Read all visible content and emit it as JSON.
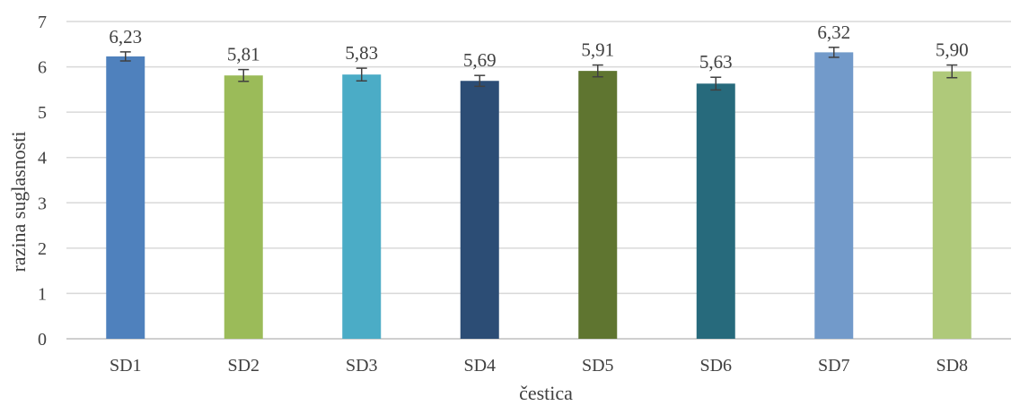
{
  "chart_data": {
    "type": "bar",
    "title": "",
    "xlabel": "čestica",
    "ylabel": "razina suglasnosti",
    "categories": [
      "SD1",
      "SD2",
      "SD3",
      "SD4",
      "SD5",
      "SD6",
      "SD7",
      "SD8"
    ],
    "values": [
      6.23,
      5.81,
      5.83,
      5.69,
      5.91,
      5.63,
      6.32,
      5.9
    ],
    "data_labels": [
      "6,23",
      "5,81",
      "5,83",
      "5,69",
      "5,91",
      "5,63",
      "6,32",
      "5,90"
    ],
    "error": [
      0.1,
      0.13,
      0.14,
      0.12,
      0.13,
      0.14,
      0.11,
      0.14
    ],
    "colors": [
      "#4F81BD",
      "#9BBB59",
      "#4BACC6",
      "#2C4D75",
      "#5F7530",
      "#276A7C",
      "#729ACA",
      "#AFC97A"
    ],
    "ylim": [
      0,
      7
    ],
    "yticks": [
      "0",
      "1",
      "2",
      "3",
      "4",
      "5",
      "6",
      "7"
    ],
    "grid": true,
    "legend": "none"
  }
}
